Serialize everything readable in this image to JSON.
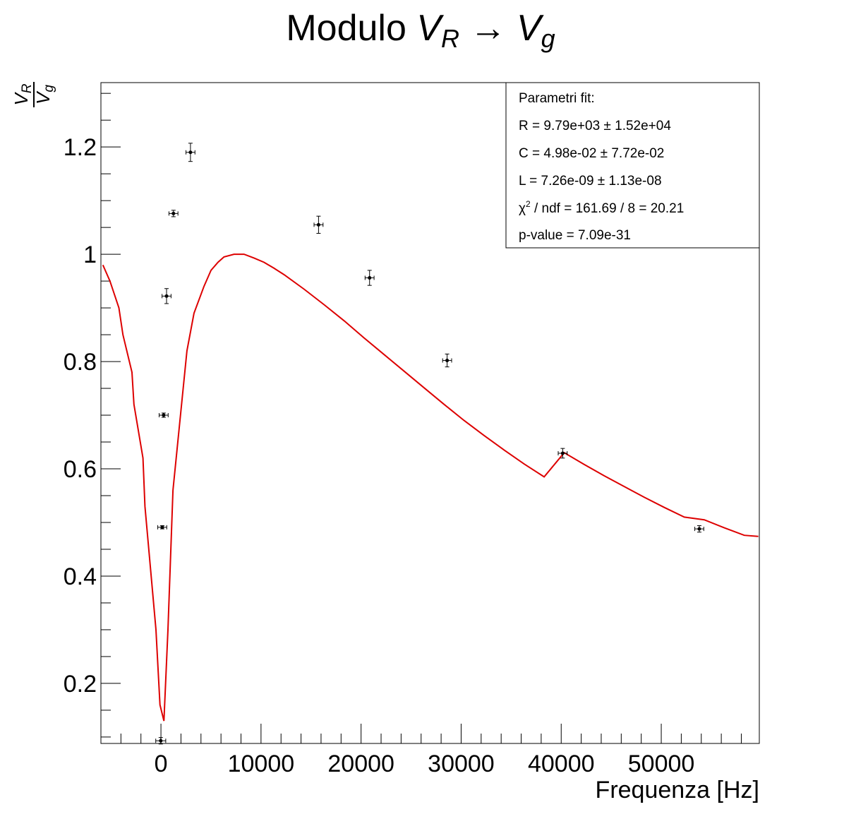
{
  "chart_data": {
    "type": "scatter",
    "title": "Modulo V_R → V_g",
    "title_parts": {
      "prefix": "Modulo ",
      "v": "V",
      "r_sub": "R",
      "arrow": " → ",
      "g": "V",
      "g_sub": "g"
    },
    "xlabel": "Frequenza [Hz]",
    "ylabel_parts": {
      "num": "V",
      "num_sub": "R",
      "den": "V",
      "den_sub": "g"
    },
    "xlim": [
      -6000,
      59800
    ],
    "ylim": [
      0.088,
      1.32
    ],
    "xticks": [
      0,
      10000,
      20000,
      30000,
      40000,
      50000
    ],
    "xtick_labels": [
      "0",
      "10000",
      "20000",
      "30000",
      "40000",
      "50000"
    ],
    "yticks": [
      0.2,
      0.4,
      0.6,
      0.8,
      1.0,
      1.2
    ],
    "ytick_labels": [
      "0.2",
      "0.4",
      "0.6",
      "0.8",
      "1",
      "1.2"
    ],
    "grid": false,
    "points": [
      {
        "x": -20,
        "y": 0.093,
        "xerr": 500,
        "yerr": 0.006
      },
      {
        "x": 130,
        "y": 0.491,
        "xerr": 450,
        "yerr": 0.003
      },
      {
        "x": 270,
        "y": 0.7,
        "xerr": 450,
        "yerr": 0.004
      },
      {
        "x": 560,
        "y": 0.922,
        "xerr": 450,
        "yerr": 0.014
      },
      {
        "x": 1250,
        "y": 1.076,
        "xerr": 450,
        "yerr": 0.006
      },
      {
        "x": 2950,
        "y": 1.19,
        "xerr": 450,
        "yerr": 0.017
      },
      {
        "x": 15750,
        "y": 1.055,
        "xerr": 450,
        "yerr": 0.016
      },
      {
        "x": 20850,
        "y": 0.956,
        "xerr": 450,
        "yerr": 0.014
      },
      {
        "x": 28600,
        "y": 0.802,
        "xerr": 450,
        "yerr": 0.012
      },
      {
        "x": 40150,
        "y": 0.629,
        "xerr": 450,
        "yerr": 0.009
      },
      {
        "x": 53800,
        "y": 0.488,
        "xerr": 450,
        "yerr": 0.006
      }
    ],
    "fit_series": {
      "name": "fit",
      "color": "#dd0000",
      "x": [
        -5800,
        -5100,
        -4200,
        -3800,
        -2900,
        -2700,
        -1800,
        -1600,
        -500,
        -100,
        300,
        700,
        1200,
        2600,
        3300,
        4300,
        5000,
        5700,
        6300,
        7300,
        8300,
        9300,
        10300,
        11300,
        12300,
        14300,
        16300,
        18300,
        20300,
        22300,
        24300,
        26300,
        28300,
        30300,
        32300,
        34300,
        36300,
        38300,
        40300,
        42300,
        44300,
        46300,
        48300,
        50300,
        52300,
        54300,
        56300,
        58300,
        59700
      ],
      "y": [
        0.98,
        0.95,
        0.9,
        0.85,
        0.78,
        0.72,
        0.62,
        0.53,
        0.3,
        0.16,
        0.13,
        0.3,
        0.56,
        0.82,
        0.89,
        0.94,
        0.97,
        0.985,
        0.995,
        1.0,
        1.0,
        0.993,
        0.985,
        0.974,
        0.962,
        0.935,
        0.906,
        0.876,
        0.844,
        0.813,
        0.782,
        0.751,
        0.72,
        0.69,
        0.662,
        0.635,
        0.609,
        0.585,
        0.63,
        0.608,
        0.587,
        0.567,
        0.547,
        0.528,
        0.51,
        0.505,
        0.49,
        0.476,
        0.474
      ]
    },
    "stats_box": {
      "header": "Parametri fit:",
      "r_line": "R = 9.79e+03 ± 1.52e+04",
      "c_line": "C = 4.98e-02 ± 7.72e-02",
      "l_line": "L = 7.26e-09 ± 1.13e-08",
      "chi_symbol": "χ",
      "chi_exp": "2",
      "chi_rest": " / ndf = 161.69 / 8 = 20.21",
      "pvalue_line": "p-value = 7.09e-31"
    },
    "colors": {
      "fit": "#dd0000",
      "points": "#000000",
      "frame": "#000000"
    }
  }
}
